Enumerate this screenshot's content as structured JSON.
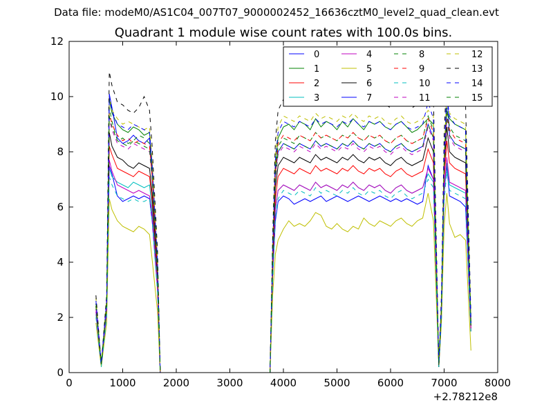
{
  "figure": {
    "header": "Data file: modeM0/AS1C04_007T07_9000002452_16636cztM0_level2_quad_clean.evt"
  },
  "chart_data": {
    "type": "line",
    "title": "Quadrant 1 module wise count rates with 100.0s bins.",
    "xlabel": "",
    "ylabel": "",
    "x_offset_label": "+2.78212e8",
    "xlim": [
      0,
      8000
    ],
    "ylim": [
      0,
      12
    ],
    "xticks": [
      0,
      1000,
      2000,
      3000,
      4000,
      5000,
      6000,
      7000,
      8000
    ],
    "yticks": [
      0,
      2,
      4,
      6,
      8,
      10,
      12
    ],
    "grid": false,
    "legend_position": "top-right",
    "legend_columns": 4,
    "x": [
      500,
      600,
      700,
      750,
      800,
      900,
      1000,
      1100,
      1200,
      1300,
      1400,
      1500,
      1550,
      1650,
      1700,
      2000,
      2500,
      3000,
      3500,
      3750,
      3800,
      3850,
      3900,
      4000,
      4100,
      4200,
      4300,
      4400,
      4500,
      4600,
      4700,
      4800,
      4900,
      5000,
      5100,
      5200,
      5300,
      5400,
      5500,
      5600,
      5700,
      5800,
      5900,
      6000,
      6100,
      6200,
      6300,
      6400,
      6500,
      6600,
      6700,
      6800,
      6900,
      6950,
      7000,
      7050,
      7100,
      7200,
      7300,
      7400,
      7500
    ],
    "series": [
      {
        "name": "0",
        "color": "#0000ff",
        "dash": "solid",
        "values": [
          2.2,
          0.3,
          2.2,
          7.5,
          7.2,
          6.4,
          6.2,
          6.3,
          6.4,
          6.3,
          6.4,
          6.3,
          5.5,
          3.0,
          0,
          0,
          0,
          0,
          0,
          0,
          3.5,
          5.5,
          6.2,
          6.4,
          6.3,
          6.1,
          6.2,
          6.3,
          6.2,
          6.3,
          6.4,
          6.2,
          6.3,
          6.4,
          6.3,
          6.2,
          6.3,
          6.4,
          6.3,
          6.2,
          6.3,
          6.4,
          6.3,
          6.2,
          6.3,
          6.2,
          6.3,
          6.2,
          6.1,
          6.2,
          7.5,
          7.0,
          0.2,
          2.0,
          6.5,
          7.5,
          6.4,
          6.3,
          6.2,
          6.0,
          1.5
        ]
      },
      {
        "name": "1",
        "color": "#008000",
        "dash": "solid",
        "values": [
          2.4,
          0.3,
          2.4,
          9.9,
          9.4,
          9.0,
          8.8,
          8.7,
          8.9,
          8.8,
          8.6,
          8.7,
          7.5,
          4.0,
          0,
          0,
          0,
          0,
          0,
          0,
          4.5,
          7.5,
          8.5,
          8.9,
          9.0,
          8.8,
          9.1,
          9.0,
          8.8,
          9.2,
          8.9,
          9.1,
          9.0,
          8.8,
          9.1,
          8.9,
          9.2,
          9.0,
          8.8,
          9.1,
          9.0,
          9.1,
          8.9,
          8.8,
          9.0,
          9.1,
          8.9,
          8.7,
          8.8,
          9.0,
          9.2,
          9.0,
          0.3,
          2.5,
          7.8,
          9.5,
          9.2,
          9.0,
          8.9,
          8.8,
          1.8
        ]
      },
      {
        "name": "2",
        "color": "#ff0000",
        "dash": "solid",
        "values": [
          2.3,
          0.3,
          2.3,
          8.2,
          7.9,
          7.4,
          7.3,
          7.2,
          7.1,
          7.3,
          7.2,
          7.1,
          6.2,
          3.3,
          0,
          0,
          0,
          0,
          0,
          0,
          3.8,
          6.3,
          7.1,
          7.4,
          7.3,
          7.2,
          7.4,
          7.3,
          7.2,
          7.5,
          7.3,
          7.4,
          7.3,
          7.2,
          7.4,
          7.3,
          7.5,
          7.3,
          7.2,
          7.4,
          7.3,
          7.4,
          7.2,
          7.1,
          7.3,
          7.4,
          7.2,
          7.1,
          7.2,
          7.3,
          8.1,
          7.6,
          0.2,
          2.2,
          7.0,
          8.4,
          7.6,
          7.4,
          7.3,
          7.2,
          1.6
        ]
      },
      {
        "name": "3",
        "color": "#00bfbf",
        "dash": "solid",
        "values": [
          2.1,
          0.3,
          2.1,
          7.4,
          7.1,
          6.9,
          6.8,
          6.7,
          6.9,
          6.8,
          6.7,
          6.8,
          5.9,
          3.1,
          0,
          0,
          0,
          0,
          0,
          0,
          3.5,
          5.9,
          6.6,
          6.8,
          6.7,
          6.6,
          6.8,
          6.7,
          6.6,
          6.9,
          6.7,
          6.8,
          6.7,
          6.6,
          6.8,
          6.7,
          6.9,
          6.7,
          6.6,
          6.8,
          6.7,
          6.8,
          6.6,
          6.5,
          6.7,
          6.8,
          6.6,
          6.5,
          6.6,
          6.7,
          7.2,
          6.9,
          0.2,
          2.0,
          6.5,
          7.6,
          6.8,
          6.7,
          6.6,
          6.5,
          1.5
        ]
      },
      {
        "name": "4",
        "color": "#bf00bf",
        "dash": "solid",
        "values": [
          2.2,
          0.3,
          2.2,
          7.7,
          7.3,
          6.8,
          6.7,
          6.6,
          6.5,
          6.6,
          6.5,
          6.4,
          5.7,
          3.0,
          0,
          0,
          0,
          0,
          0,
          0,
          3.6,
          6.0,
          6.6,
          6.8,
          6.7,
          6.6,
          6.8,
          6.7,
          6.6,
          6.9,
          6.7,
          6.8,
          6.7,
          6.6,
          6.8,
          6.7,
          6.9,
          6.7,
          6.6,
          6.8,
          6.7,
          6.8,
          6.6,
          6.5,
          6.7,
          6.8,
          6.6,
          6.5,
          6.6,
          6.7,
          7.4,
          7.0,
          0.2,
          2.1,
          6.6,
          7.8,
          6.9,
          6.8,
          6.7,
          6.6,
          1.5
        ]
      },
      {
        "name": "5",
        "color": "#bfbf00",
        "dash": "solid",
        "values": [
          1.8,
          0.2,
          1.8,
          6.3,
          5.9,
          5.5,
          5.3,
          5.2,
          5.1,
          5.3,
          5.2,
          5.0,
          4.1,
          2.2,
          0,
          0,
          0,
          0,
          0,
          0,
          2.8,
          4.3,
          4.8,
          5.2,
          5.5,
          5.3,
          5.4,
          5.3,
          5.5,
          5.8,
          5.7,
          5.3,
          5.2,
          5.4,
          5.2,
          5.1,
          5.3,
          5.2,
          5.6,
          5.4,
          5.3,
          5.5,
          5.4,
          5.3,
          5.5,
          5.6,
          5.4,
          5.3,
          5.5,
          5.6,
          6.5,
          5.5,
          0.2,
          1.8,
          5.3,
          6.5,
          5.4,
          4.9,
          5.0,
          4.8,
          0.8
        ]
      },
      {
        "name": "6",
        "color": "#000000",
        "dash": "solid",
        "values": [
          2.5,
          0.3,
          2.5,
          8.7,
          8.2,
          7.8,
          7.7,
          7.5,
          7.4,
          7.6,
          7.5,
          7.4,
          6.5,
          3.5,
          0,
          0,
          0,
          0,
          0,
          0,
          4.0,
          6.7,
          7.5,
          7.8,
          7.7,
          7.6,
          7.8,
          7.7,
          7.6,
          7.9,
          7.7,
          7.8,
          7.7,
          7.6,
          7.8,
          7.7,
          7.9,
          7.7,
          7.6,
          7.8,
          7.7,
          7.8,
          7.6,
          7.5,
          7.7,
          7.8,
          7.6,
          7.5,
          7.6,
          7.7,
          8.5,
          8.0,
          0.2,
          2.3,
          7.3,
          8.9,
          8.0,
          7.8,
          7.7,
          7.6,
          1.7
        ]
      },
      {
        "name": "7",
        "color": "#0000ff",
        "dash": "solid",
        "values": [
          2.4,
          0.3,
          2.4,
          10.1,
          9.6,
          8.5,
          8.3,
          8.4,
          8.6,
          8.4,
          8.3,
          8.5,
          7.3,
          3.9,
          0,
          0,
          0,
          0,
          0,
          0,
          4.3,
          7.2,
          8.0,
          8.3,
          8.2,
          8.1,
          8.3,
          8.2,
          8.1,
          8.4,
          8.2,
          8.3,
          8.2,
          8.1,
          8.3,
          8.2,
          8.4,
          8.2,
          8.1,
          8.3,
          8.2,
          8.3,
          8.1,
          8.0,
          8.2,
          8.3,
          8.1,
          8.0,
          8.1,
          8.2,
          9.0,
          8.5,
          0.3,
          2.4,
          7.6,
          10.3,
          8.6,
          8.3,
          8.2,
          8.1,
          1.8
        ]
      },
      {
        "name": "8",
        "color": "#008000",
        "dash": "dashed",
        "values": [
          2.5,
          0.3,
          2.5,
          9.6,
          9.1,
          8.4,
          8.5,
          8.3,
          8.4,
          8.6,
          8.5,
          8.3,
          7.2,
          3.8,
          0,
          0,
          0,
          0,
          0,
          0,
          4.4,
          7.3,
          8.2,
          8.5,
          8.4,
          8.3,
          8.6,
          8.5,
          8.4,
          8.7,
          8.5,
          8.6,
          8.5,
          8.4,
          8.6,
          8.5,
          8.7,
          8.5,
          8.4,
          8.6,
          8.5,
          8.6,
          8.4,
          8.3,
          8.5,
          8.6,
          8.4,
          8.3,
          8.4,
          8.5,
          9.3,
          8.8,
          0.3,
          2.4,
          7.6,
          9.6,
          8.9,
          8.6,
          8.5,
          8.4,
          1.7
        ]
      },
      {
        "name": "9",
        "color": "#ff0000",
        "dash": "dashed",
        "values": [
          2.4,
          0.3,
          2.4,
          9.4,
          9.0,
          8.6,
          8.4,
          8.5,
          8.3,
          8.4,
          8.3,
          8.2,
          7.1,
          3.7,
          0,
          0,
          0,
          0,
          0,
          0,
          4.3,
          7.2,
          8.3,
          8.6,
          8.5,
          8.4,
          8.6,
          8.5,
          8.4,
          8.7,
          8.5,
          8.6,
          8.5,
          8.4,
          8.6,
          8.5,
          8.7,
          8.5,
          8.4,
          8.6,
          8.5,
          8.6,
          8.4,
          8.3,
          8.5,
          8.6,
          8.4,
          8.3,
          8.4,
          8.5,
          9.2,
          8.7,
          0.3,
          2.3,
          7.5,
          9.4,
          8.8,
          8.5,
          8.4,
          8.3,
          1.7
        ]
      },
      {
        "name": "10",
        "color": "#00bfbf",
        "dash": "dashed",
        "values": [
          2.0,
          0.2,
          2.0,
          7.1,
          6.8,
          6.4,
          6.3,
          6.2,
          6.3,
          6.2,
          6.2,
          6.3,
          5.5,
          2.9,
          0,
          0,
          0,
          0,
          0,
          0,
          3.3,
          5.6,
          6.3,
          6.6,
          6.5,
          6.4,
          6.6,
          6.5,
          6.4,
          6.7,
          6.5,
          6.6,
          6.5,
          6.4,
          6.6,
          6.5,
          6.7,
          6.5,
          6.4,
          6.6,
          6.5,
          6.6,
          6.4,
          6.3,
          6.5,
          6.6,
          6.4,
          6.3,
          6.4,
          6.5,
          7.0,
          6.7,
          0.2,
          1.9,
          6.2,
          7.3,
          6.6,
          6.5,
          6.4,
          6.3,
          1.4
        ]
      },
      {
        "name": "11",
        "color": "#bf00bf",
        "dash": "dashed",
        "values": [
          2.3,
          0.3,
          2.3,
          9.2,
          8.8,
          8.3,
          8.2,
          8.1,
          8.3,
          8.2,
          8.1,
          8.0,
          7.0,
          3.6,
          0,
          0,
          0,
          0,
          0,
          0,
          4.2,
          7.0,
          7.9,
          8.2,
          8.1,
          8.0,
          8.2,
          8.1,
          8.0,
          8.3,
          8.1,
          8.2,
          8.1,
          8.0,
          8.2,
          8.1,
          8.3,
          8.1,
          8.0,
          8.2,
          8.1,
          8.2,
          8.0,
          7.9,
          8.1,
          8.2,
          8.0,
          7.9,
          8.0,
          8.1,
          8.9,
          8.4,
          0.3,
          2.3,
          7.3,
          9.2,
          8.5,
          8.2,
          8.1,
          8.0,
          1.6
        ]
      },
      {
        "name": "12",
        "color": "#bfbf00",
        "dash": "dashed",
        "values": [
          2.7,
          0.3,
          2.7,
          10.0,
          9.5,
          9.2,
          9.0,
          9.1,
          9.0,
          8.9,
          8.8,
          8.9,
          7.7,
          4.1,
          0,
          0,
          0,
          0,
          0,
          0,
          4.7,
          7.9,
          8.9,
          9.3,
          9.2,
          9.1,
          9.3,
          9.2,
          9.1,
          9.4,
          9.2,
          9.3,
          9.2,
          9.1,
          9.3,
          9.2,
          9.4,
          9.2,
          9.1,
          9.3,
          9.2,
          9.3,
          9.1,
          9.0,
          9.2,
          9.3,
          9.1,
          9.0,
          9.1,
          9.2,
          9.5,
          9.3,
          0.3,
          2.6,
          8.0,
          10.1,
          9.4,
          9.2,
          9.1,
          9.0,
          1.9
        ]
      },
      {
        "name": "13",
        "color": "#000000",
        "dash": "dashed",
        "values": [
          2.8,
          0.3,
          2.8,
          10.9,
          10.4,
          9.8,
          9.7,
          9.5,
          9.4,
          9.6,
          10.0,
          9.5,
          8.2,
          4.4,
          0,
          0,
          0,
          0,
          0,
          0,
          5.0,
          8.4,
          9.5,
          9.9,
          9.8,
          9.7,
          9.9,
          9.8,
          9.7,
          10.0,
          9.8,
          9.9,
          9.8,
          9.7,
          9.9,
          9.8,
          10.0,
          9.8,
          9.7,
          9.9,
          9.8,
          9.9,
          9.7,
          9.6,
          9.8,
          9.9,
          9.7,
          9.6,
          9.7,
          9.8,
          10.6,
          10.0,
          0.3,
          2.8,
          8.6,
          10.9,
          10.2,
          9.9,
          9.8,
          9.7,
          2.0
        ]
      },
      {
        "name": "14",
        "color": "#0000ff",
        "dash": "dashed",
        "values": [
          2.6,
          0.3,
          2.6,
          10.0,
          9.5,
          9.0,
          8.9,
          8.8,
          9.0,
          8.9,
          8.8,
          8.7,
          7.5,
          4.0,
          0,
          0,
          0,
          0,
          0,
          0,
          4.6,
          7.7,
          8.7,
          9.1,
          9.0,
          8.9,
          9.1,
          9.0,
          8.9,
          9.2,
          9.0,
          9.1,
          9.0,
          8.9,
          9.1,
          9.0,
          9.2,
          9.0,
          8.9,
          9.1,
          9.0,
          9.1,
          8.9,
          8.8,
          9.0,
          9.1,
          8.9,
          8.8,
          8.9,
          9.0,
          9.8,
          9.2,
          0.3,
          2.5,
          7.9,
          10.0,
          9.3,
          9.0,
          8.9,
          8.8,
          1.8
        ]
      },
      {
        "name": "15",
        "color": "#008000",
        "dash": "dashed",
        "values": [
          2.4,
          0.3,
          2.4,
          9.3,
          8.9,
          8.4,
          8.3,
          8.2,
          8.4,
          8.3,
          8.2,
          8.1,
          7.1,
          3.7,
          0,
          0,
          0,
          0,
          0,
          0,
          4.3,
          7.1,
          8.0,
          8.3,
          8.2,
          8.1,
          8.3,
          8.2,
          8.1,
          8.4,
          8.2,
          8.3,
          8.2,
          8.1,
          8.3,
          8.2,
          8.4,
          8.2,
          8.1,
          8.3,
          8.2,
          8.3,
          8.1,
          8.0,
          8.2,
          8.3,
          8.1,
          8.0,
          8.1,
          8.2,
          9.0,
          8.5,
          0.3,
          2.3,
          7.4,
          9.4,
          8.6,
          8.3,
          8.2,
          8.1,
          1.7
        ]
      }
    ]
  }
}
